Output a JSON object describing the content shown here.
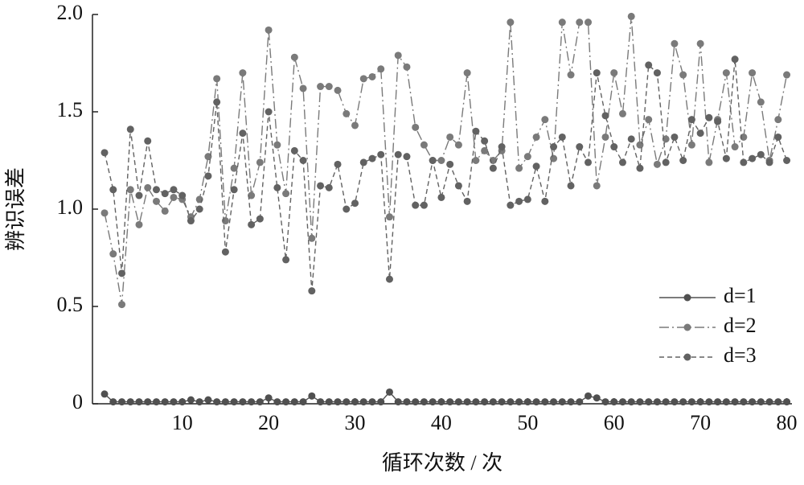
{
  "chart_data": {
    "type": "line",
    "x_label": "循环次数 / 次",
    "y_label": "辨识误差",
    "x": [
      1,
      2,
      3,
      4,
      5,
      6,
      7,
      8,
      9,
      10,
      11,
      12,
      13,
      14,
      15,
      16,
      17,
      18,
      19,
      20,
      21,
      22,
      23,
      24,
      25,
      26,
      27,
      28,
      29,
      30,
      31,
      32,
      33,
      34,
      35,
      36,
      37,
      38,
      39,
      40,
      41,
      42,
      43,
      44,
      45,
      46,
      47,
      48,
      49,
      50,
      51,
      52,
      53,
      54,
      55,
      56,
      57,
      58,
      59,
      60,
      61,
      62,
      63,
      64,
      65,
      66,
      67,
      68,
      69,
      70,
      71,
      72,
      73,
      74,
      75,
      76,
      77,
      78,
      79,
      80
    ],
    "series": [
      {
        "name": "d=1",
        "color": "#505050",
        "dash": "solid",
        "values": [
          0.05,
          0.01,
          0.01,
          0.01,
          0.01,
          0.01,
          0.01,
          0.01,
          0.01,
          0.01,
          0.02,
          0.01,
          0.02,
          0.01,
          0.01,
          0.01,
          0.01,
          0.01,
          0.01,
          0.03,
          0.01,
          0.01,
          0.01,
          0.01,
          0.04,
          0.01,
          0.01,
          0.01,
          0.01,
          0.01,
          0.01,
          0.01,
          0.01,
          0.06,
          0.01,
          0.01,
          0.01,
          0.01,
          0.01,
          0.01,
          0.01,
          0.01,
          0.01,
          0.01,
          0.01,
          0.01,
          0.01,
          0.01,
          0.01,
          0.01,
          0.01,
          0.01,
          0.01,
          0.01,
          0.01,
          0.01,
          0.04,
          0.03,
          0.01,
          0.01,
          0.01,
          0.01,
          0.01,
          0.01,
          0.01,
          0.01,
          0.01,
          0.01,
          0.01,
          0.01,
          0.01,
          0.01,
          0.01,
          0.01,
          0.01,
          0.01,
          0.01,
          0.01,
          0.01,
          0.01
        ]
      },
      {
        "name": "d=2",
        "color": "#7a7a7a",
        "dash": "dashdot",
        "values": [
          0.98,
          0.77,
          0.51,
          1.1,
          0.92,
          1.11,
          1.04,
          0.99,
          1.06,
          1.05,
          0.96,
          1.05,
          1.27,
          1.67,
          0.94,
          1.21,
          1.7,
          1.07,
          1.24,
          1.92,
          1.33,
          1.08,
          1.78,
          1.62,
          0.85,
          1.63,
          1.63,
          1.61,
          1.49,
          1.43,
          1.67,
          1.68,
          1.72,
          0.96,
          1.79,
          1.73,
          1.42,
          1.33,
          1.25,
          1.25,
          1.37,
          1.33,
          1.7,
          1.25,
          1.3,
          1.25,
          1.3,
          1.96,
          1.21,
          1.27,
          1.37,
          1.46,
          1.26,
          1.96,
          1.69,
          1.96,
          1.96,
          1.12,
          1.37,
          1.7,
          1.49,
          1.99,
          1.33,
          1.46,
          1.23,
          1.36,
          1.85,
          1.69,
          1.33,
          1.85,
          1.24,
          1.46,
          1.7,
          1.32,
          1.37,
          1.7,
          1.55,
          1.25,
          1.46,
          1.69
        ]
      },
      {
        "name": "d=3",
        "color": "#626262",
        "dash": "dashed",
        "values": [
          1.29,
          1.1,
          0.67,
          1.41,
          1.07,
          1.35,
          1.1,
          1.08,
          1.1,
          1.07,
          0.94,
          1.0,
          1.17,
          1.55,
          0.78,
          1.1,
          1.39,
          0.92,
          0.95,
          1.5,
          1.11,
          0.74,
          1.3,
          1.25,
          0.58,
          1.12,
          1.11,
          1.23,
          1.0,
          1.03,
          1.24,
          1.26,
          1.28,
          0.64,
          1.28,
          1.27,
          1.02,
          1.02,
          1.25,
          1.06,
          1.23,
          1.12,
          1.04,
          1.4,
          1.35,
          1.21,
          1.32,
          1.02,
          1.04,
          1.05,
          1.22,
          1.04,
          1.32,
          1.37,
          1.12,
          1.32,
          1.24,
          1.7,
          1.48,
          1.32,
          1.24,
          1.36,
          1.21,
          1.74,
          1.7,
          1.24,
          1.37,
          1.25,
          1.46,
          1.39,
          1.47,
          1.45,
          1.26,
          1.77,
          1.24,
          1.26,
          1.28,
          1.24,
          1.37,
          1.25
        ]
      }
    ],
    "xlim": [
      -0.4,
      80.6
    ],
    "xticks": [
      10,
      20,
      30,
      40,
      50,
      60,
      70,
      80
    ],
    "ylim": [
      0,
      2.0
    ],
    "yticks": [
      0,
      0.5,
      {
        "value": 1,
        "label": "1.0"
      },
      1.5,
      {
        "value": 2,
        "label": "2.0"
      }
    ],
    "legend": "right",
    "grid": false
  }
}
